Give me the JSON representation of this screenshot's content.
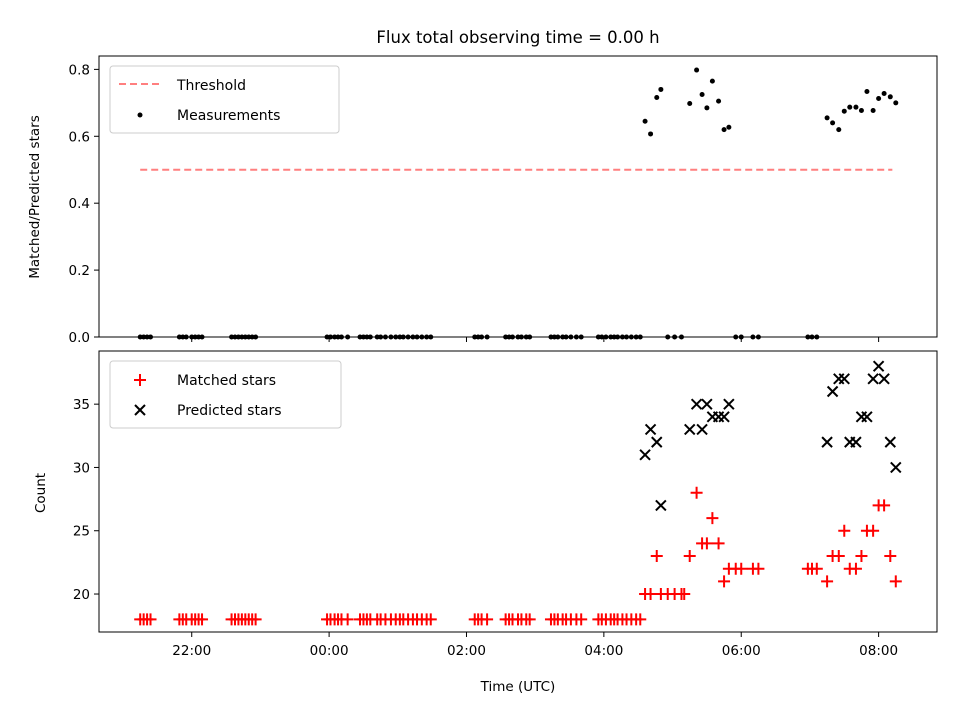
{
  "chart_data": [
    {
      "type": "scatter",
      "title": "Flux total observing time = 0.00 h",
      "ylabel": "Matched/Predicted stars",
      "xlabel": "",
      "x_unit": "hours (UTC, continuing past midnight)",
      "xlim": [
        20.65,
        32.85
      ],
      "ylim": [
        0,
        0.84
      ],
      "yticks": [
        0.0,
        0.2,
        0.4,
        0.6,
        0.8
      ],
      "ytick_labels": [
        "0.0",
        "0.2",
        "0.4",
        "0.6",
        "0.8"
      ],
      "legend_position": "upper-left",
      "series": [
        {
          "name": "Threshold",
          "kind": "line",
          "style": "dashed",
          "color": "#ff7f7f",
          "x": [
            21.25,
            32.2
          ],
          "y": [
            0.5,
            0.5
          ]
        },
        {
          "name": "Measurements",
          "kind": "scatter",
          "marker": "dot",
          "color": "#000000",
          "points": [
            [
              21.25,
              0
            ],
            [
              21.3,
              0
            ],
            [
              21.35,
              0
            ],
            [
              21.4,
              0
            ],
            [
              21.82,
              0
            ],
            [
              21.87,
              0
            ],
            [
              21.92,
              0
            ],
            [
              22.0,
              0
            ],
            [
              22.05,
              0
            ],
            [
              22.1,
              0
            ],
            [
              22.15,
              0
            ],
            [
              22.58,
              0
            ],
            [
              22.63,
              0
            ],
            [
              22.68,
              0
            ],
            [
              22.73,
              0
            ],
            [
              22.78,
              0
            ],
            [
              22.83,
              0
            ],
            [
              22.88,
              0
            ],
            [
              22.93,
              0
            ],
            [
              23.97,
              0
            ],
            [
              24.02,
              0
            ],
            [
              24.08,
              0
            ],
            [
              24.13,
              0
            ],
            [
              24.18,
              0
            ],
            [
              24.27,
              0
            ],
            [
              24.45,
              0
            ],
            [
              24.5,
              0
            ],
            [
              24.55,
              0
            ],
            [
              24.6,
              0
            ],
            [
              24.7,
              0
            ],
            [
              24.75,
              0
            ],
            [
              24.82,
              0
            ],
            [
              24.9,
              0
            ],
            [
              24.97,
              0
            ],
            [
              25.03,
              0
            ],
            [
              25.08,
              0
            ],
            [
              25.15,
              0
            ],
            [
              25.22,
              0
            ],
            [
              25.28,
              0
            ],
            [
              25.35,
              0
            ],
            [
              25.42,
              0
            ],
            [
              25.48,
              0
            ],
            [
              26.12,
              0
            ],
            [
              26.17,
              0
            ],
            [
              26.22,
              0
            ],
            [
              26.3,
              0
            ],
            [
              26.57,
              0
            ],
            [
              26.62,
              0
            ],
            [
              26.67,
              0
            ],
            [
              26.75,
              0
            ],
            [
              26.8,
              0
            ],
            [
              26.87,
              0
            ],
            [
              26.92,
              0
            ],
            [
              27.23,
              0
            ],
            [
              27.28,
              0
            ],
            [
              27.33,
              0
            ],
            [
              27.4,
              0
            ],
            [
              27.45,
              0
            ],
            [
              27.52,
              0
            ],
            [
              27.6,
              0
            ],
            [
              27.67,
              0
            ],
            [
              27.92,
              0
            ],
            [
              27.97,
              0
            ],
            [
              28.03,
              0
            ],
            [
              28.1,
              0
            ],
            [
              28.15,
              0
            ],
            [
              28.2,
              0
            ],
            [
              28.27,
              0
            ],
            [
              28.33,
              0
            ],
            [
              28.4,
              0
            ],
            [
              28.47,
              0
            ],
            [
              28.53,
              0
            ],
            [
              28.93,
              0
            ],
            [
              29.03,
              0
            ],
            [
              29.13,
              0
            ],
            [
              29.92,
              0
            ],
            [
              30.0,
              0
            ],
            [
              30.17,
              0
            ],
            [
              30.25,
              0
            ],
            [
              30.97,
              0
            ],
            [
              31.03,
              0
            ],
            [
              31.1,
              0
            ],
            [
              28.6,
              0.645
            ],
            [
              28.68,
              0.607
            ],
            [
              28.77,
              0.716
            ],
            [
              28.83,
              0.74
            ],
            [
              29.25,
              0.698
            ],
            [
              29.35,
              0.798
            ],
            [
              29.43,
              0.725
            ],
            [
              29.5,
              0.685
            ],
            [
              29.58,
              0.765
            ],
            [
              29.67,
              0.705
            ],
            [
              29.75,
              0.62
            ],
            [
              29.82,
              0.627
            ],
            [
              31.25,
              0.655
            ],
            [
              31.33,
              0.64
            ],
            [
              31.42,
              0.62
            ],
            [
              31.5,
              0.675
            ],
            [
              31.58,
              0.687
            ],
            [
              31.67,
              0.687
            ],
            [
              31.75,
              0.677
            ],
            [
              31.83,
              0.734
            ],
            [
              31.92,
              0.677
            ],
            [
              32.0,
              0.713
            ],
            [
              32.08,
              0.728
            ],
            [
              32.17,
              0.718
            ],
            [
              32.25,
              0.7
            ]
          ]
        }
      ]
    },
    {
      "type": "scatter",
      "title": "",
      "ylabel": "Count",
      "xlabel": "Time (UTC)",
      "x_unit": "hours (UTC, continuing past midnight)",
      "xlim": [
        20.65,
        32.85
      ],
      "ylim": [
        17,
        39.2
      ],
      "xticks": [
        22,
        24,
        26,
        28,
        30,
        32
      ],
      "xtick_labels": [
        "22:00",
        "00:00",
        "02:00",
        "04:00",
        "06:00",
        "08:00"
      ],
      "yticks": [
        20,
        25,
        30,
        35
      ],
      "ytick_labels": [
        "20",
        "25",
        "30",
        "35"
      ],
      "legend_position": "upper-left",
      "series": [
        {
          "name": "Matched stars",
          "kind": "scatter",
          "marker": "plus",
          "color": "#ff0000",
          "points": [
            [
              21.25,
              18
            ],
            [
              21.3,
              18
            ],
            [
              21.35,
              18
            ],
            [
              21.4,
              18
            ],
            [
              21.82,
              18
            ],
            [
              21.87,
              18
            ],
            [
              21.92,
              18
            ],
            [
              22.0,
              18
            ],
            [
              22.05,
              18
            ],
            [
              22.1,
              18
            ],
            [
              22.15,
              18
            ],
            [
              22.58,
              18
            ],
            [
              22.63,
              18
            ],
            [
              22.68,
              18
            ],
            [
              22.73,
              18
            ],
            [
              22.78,
              18
            ],
            [
              22.83,
              18
            ],
            [
              22.88,
              18
            ],
            [
              22.93,
              18
            ],
            [
              23.97,
              18
            ],
            [
              24.02,
              18
            ],
            [
              24.08,
              18
            ],
            [
              24.13,
              18
            ],
            [
              24.18,
              18
            ],
            [
              24.27,
              18
            ],
            [
              24.45,
              18
            ],
            [
              24.5,
              18
            ],
            [
              24.55,
              18
            ],
            [
              24.6,
              18
            ],
            [
              24.7,
              18
            ],
            [
              24.75,
              18
            ],
            [
              24.82,
              18
            ],
            [
              24.9,
              18
            ],
            [
              24.97,
              18
            ],
            [
              25.03,
              18
            ],
            [
              25.08,
              18
            ],
            [
              25.15,
              18
            ],
            [
              25.22,
              18
            ],
            [
              25.28,
              18
            ],
            [
              25.35,
              18
            ],
            [
              25.42,
              18
            ],
            [
              25.48,
              18
            ],
            [
              26.12,
              18
            ],
            [
              26.17,
              18
            ],
            [
              26.22,
              18
            ],
            [
              26.3,
              18
            ],
            [
              26.57,
              18
            ],
            [
              26.62,
              18
            ],
            [
              26.67,
              18
            ],
            [
              26.75,
              18
            ],
            [
              26.8,
              18
            ],
            [
              26.87,
              18
            ],
            [
              26.92,
              18
            ],
            [
              27.23,
              18
            ],
            [
              27.28,
              18
            ],
            [
              27.33,
              18
            ],
            [
              27.4,
              18
            ],
            [
              27.45,
              18
            ],
            [
              27.52,
              18
            ],
            [
              27.6,
              18
            ],
            [
              27.67,
              18
            ],
            [
              27.92,
              18
            ],
            [
              27.97,
              18
            ],
            [
              28.03,
              18
            ],
            [
              28.1,
              18
            ],
            [
              28.15,
              18
            ],
            [
              28.2,
              18
            ],
            [
              28.27,
              18
            ],
            [
              28.33,
              18
            ],
            [
              28.4,
              18
            ],
            [
              28.47,
              18
            ],
            [
              28.53,
              18
            ],
            [
              28.6,
              20
            ],
            [
              28.68,
              20
            ],
            [
              28.77,
              23
            ],
            [
              28.83,
              20
            ],
            [
              28.93,
              20
            ],
            [
              29.03,
              20
            ],
            [
              29.13,
              20
            ],
            [
              29.17,
              20
            ],
            [
              29.25,
              23
            ],
            [
              29.35,
              28
            ],
            [
              29.43,
              24
            ],
            [
              29.5,
              24
            ],
            [
              29.58,
              26
            ],
            [
              29.67,
              24
            ],
            [
              29.75,
              21
            ],
            [
              29.82,
              22
            ],
            [
              29.92,
              22
            ],
            [
              30.0,
              22
            ],
            [
              30.17,
              22
            ],
            [
              30.25,
              22
            ],
            [
              30.97,
              22
            ],
            [
              31.03,
              22
            ],
            [
              31.1,
              22
            ],
            [
              31.25,
              21
            ],
            [
              31.33,
              23
            ],
            [
              31.42,
              23
            ],
            [
              31.5,
              25
            ],
            [
              31.58,
              22
            ],
            [
              31.67,
              22
            ],
            [
              31.75,
              23
            ],
            [
              31.83,
              25
            ],
            [
              31.92,
              25
            ],
            [
              32.0,
              27
            ],
            [
              32.08,
              27
            ],
            [
              32.17,
              23
            ],
            [
              32.25,
              21
            ]
          ]
        },
        {
          "name": "Predicted stars",
          "kind": "scatter",
          "marker": "x",
          "color": "#000000",
          "points": [
            [
              28.6,
              31
            ],
            [
              28.68,
              33
            ],
            [
              28.77,
              32
            ],
            [
              28.83,
              27
            ],
            [
              29.25,
              33
            ],
            [
              29.35,
              35
            ],
            [
              29.43,
              33
            ],
            [
              29.5,
              35
            ],
            [
              29.58,
              34
            ],
            [
              29.67,
              34
            ],
            [
              29.75,
              34
            ],
            [
              29.82,
              35
            ],
            [
              31.25,
              32
            ],
            [
              31.33,
              36
            ],
            [
              31.42,
              37
            ],
            [
              31.5,
              37
            ],
            [
              31.58,
              32
            ],
            [
              31.67,
              32
            ],
            [
              31.75,
              34
            ],
            [
              31.83,
              34
            ],
            [
              31.92,
              37
            ],
            [
              32.0,
              38
            ],
            [
              32.08,
              37
            ],
            [
              32.17,
              32
            ],
            [
              32.25,
              30
            ]
          ]
        }
      ]
    }
  ]
}
